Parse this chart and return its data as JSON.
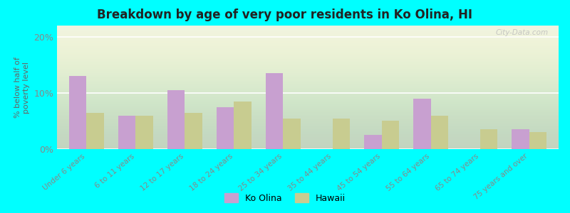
{
  "title": "Breakdown by age of very poor residents in Ko Olina, HI",
  "categories": [
    "Under 6 years",
    "6 to 11 years",
    "12 to 17 years",
    "18 to 24 years",
    "25 to 34 years",
    "35 to 44 years",
    "45 to 54 years",
    "55 to 64 years",
    "65 to 74 years",
    "75 years and over"
  ],
  "ko_olina": [
    13.0,
    6.0,
    10.5,
    7.5,
    13.5,
    0.0,
    2.5,
    9.0,
    0.0,
    3.5
  ],
  "hawaii": [
    6.5,
    6.0,
    6.5,
    8.5,
    5.5,
    5.5,
    5.0,
    6.0,
    3.5,
    3.0
  ],
  "ko_olina_color": "#c8a0d0",
  "hawaii_color": "#c8cc90",
  "background_color": "#00ffff",
  "plot_bg_color": "#eef2e0",
  "ylim": [
    0,
    22
  ],
  "yticks": [
    0,
    10,
    20
  ],
  "ytick_labels": [
    "0%",
    "10%",
    "20%"
  ],
  "ylabel": "% below half of\npoverty level",
  "legend_ko_olina": "Ko Olina",
  "legend_hawaii": "Hawaii",
  "watermark": "City-Data.com",
  "bar_width": 0.35
}
